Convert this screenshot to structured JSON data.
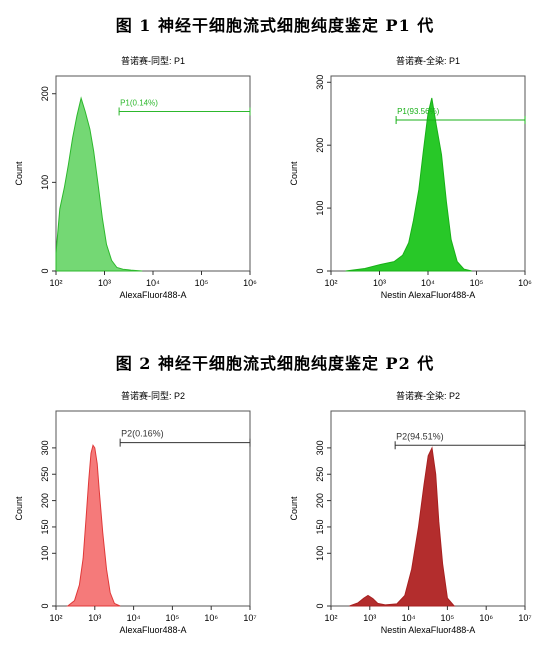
{
  "figures": [
    {
      "title": "图 1  神经干细胞流式细胞纯度鉴定  P1 代"
    },
    {
      "title": "图 2  神经干细胞流式细胞纯度鉴定  P2 代"
    }
  ],
  "chart_data": [
    {
      "type": "area",
      "title": "普诺赛-同型: P1",
      "xlabel": "AlexaFluor488-A",
      "ylabel": "Count",
      "xscale": "log",
      "xlim": [
        100,
        1000000
      ],
      "ylim": [
        0,
        220
      ],
      "xticks": [
        "10^2",
        "10^3",
        "10^4",
        "10^5",
        "10^6"
      ],
      "yticks": [
        0,
        100,
        200
      ],
      "color": "#2db82d",
      "fill": "#74d874",
      "gate": {
        "label": "P1(0.14%)",
        "x_start": 2000,
        "x_end": 1000000,
        "y": 180
      },
      "series": [
        {
          "x": [
            100,
            120,
            150,
            180,
            220,
            270,
            330,
            400,
            500,
            600,
            750,
            900,
            1100,
            1400,
            1800,
            2400,
            3500,
            6000
          ],
          "values": [
            20,
            70,
            95,
            120,
            150,
            175,
            195,
            180,
            160,
            135,
            95,
            60,
            30,
            12,
            4,
            2,
            1,
            0
          ]
        }
      ]
    },
    {
      "type": "area",
      "title": "普诺赛-全染: P1",
      "xlabel": "Nestin AlexaFluor488-A",
      "ylabel": "Count",
      "xscale": "log",
      "xlim": [
        100,
        1000000
      ],
      "ylim": [
        0,
        310
      ],
      "xticks": [
        "10^2",
        "10^3",
        "10^4",
        "10^5",
        "10^6"
      ],
      "yticks": [
        0,
        100,
        200,
        300
      ],
      "color": "#18b018",
      "fill": "#28c828",
      "gate": {
        "label": "P1(93.56%)",
        "x_start": 2200,
        "x_end": 1000000,
        "y": 240
      },
      "series": [
        {
          "x": [
            200,
            500,
            1000,
            2000,
            3000,
            4000,
            5000,
            6500,
            8000,
            10000,
            12000,
            15000,
            19000,
            24000,
            30000,
            40000,
            55000,
            80000
          ],
          "values": [
            0,
            4,
            10,
            15,
            25,
            45,
            80,
            130,
            190,
            250,
            275,
            230,
            185,
            110,
            50,
            15,
            3,
            0
          ]
        }
      ]
    },
    {
      "type": "area",
      "title": "普诺赛-同型: P2",
      "xlabel": "AlexaFluor488-A",
      "ylabel": "Count",
      "xscale": "log",
      "xlim": [
        100,
        10000000
      ],
      "ylim": [
        0,
        370
      ],
      "xticks": [
        "10^2",
        "10^3",
        "10^4",
        "10^5",
        "10^6",
        "10^7"
      ],
      "yticks": [
        0,
        100,
        150,
        200,
        250,
        300
      ],
      "color": "#e03838",
      "fill": "#f57a7a",
      "gate": {
        "label": "P2(0.16%)",
        "x_start": 4500,
        "x_end": 10000000,
        "y": 310
      },
      "series": [
        {
          "x": [
            200,
            300,
            400,
            500,
            600,
            700,
            800,
            900,
            1000,
            1150,
            1300,
            1600,
            2000,
            2500,
            3200,
            4500
          ],
          "values": [
            0,
            10,
            40,
            90,
            170,
            240,
            290,
            305,
            300,
            270,
            220,
            140,
            70,
            25,
            5,
            0
          ]
        }
      ]
    },
    {
      "type": "area",
      "title": "普诺赛-全染: P2",
      "xlabel": "Nestin AlexaFluor488-A",
      "ylabel": "Count",
      "xscale": "log",
      "xlim": [
        100,
        10000000
      ],
      "ylim": [
        0,
        370
      ],
      "xticks": [
        "10^2",
        "10^3",
        "10^4",
        "10^5",
        "10^6",
        "10^7"
      ],
      "yticks": [
        0,
        100,
        150,
        200,
        250,
        300
      ],
      "color": "#a82020",
      "fill": "#b32d2d",
      "gate": {
        "label": "P2(94.51%)",
        "x_start": 4500,
        "x_end": 10000000,
        "y": 305
      },
      "series": [
        {
          "x": [
            300,
            500,
            700,
            900,
            1200,
            1600,
            2500,
            5000,
            8000,
            12000,
            18000,
            25000,
            32000,
            40000,
            50000,
            60000,
            75000,
            100000,
            150000
          ],
          "values": [
            0,
            6,
            15,
            20,
            14,
            5,
            2,
            4,
            20,
            70,
            150,
            230,
            285,
            300,
            250,
            160,
            80,
            15,
            0
          ]
        }
      ]
    }
  ]
}
